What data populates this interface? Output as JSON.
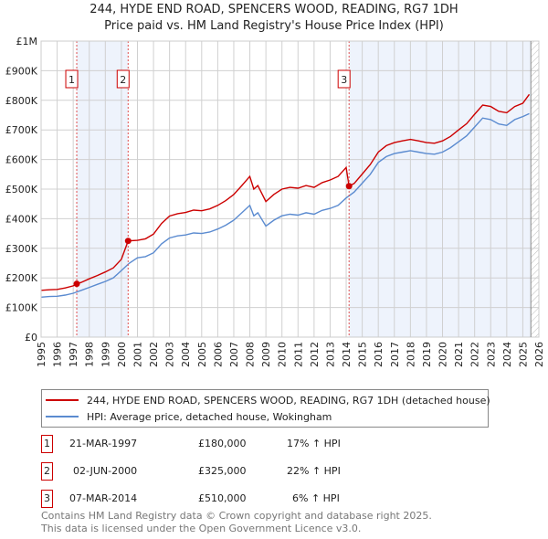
{
  "chart_data": {
    "type": "line",
    "title": "244, HYDE END ROAD, SPENCERS WOOD, READING, RG7 1DH",
    "subtitle": "Price paid vs. HM Land Registry's House Price Index (HPI)",
    "xlim": [
      1995,
      2026
    ],
    "ylim": [
      0,
      1000000
    ],
    "x_ticks": [
      "1995",
      "1996",
      "1997",
      "1998",
      "1999",
      "2000",
      "2001",
      "2002",
      "2003",
      "2004",
      "2005",
      "2006",
      "2007",
      "2008",
      "2009",
      "2010",
      "2011",
      "2012",
      "2013",
      "2014",
      "2015",
      "2016",
      "2017",
      "2018",
      "2019",
      "2020",
      "2021",
      "2022",
      "2023",
      "2024",
      "2025",
      "2026"
    ],
    "y_ticks": [
      {
        "v": 0,
        "label": "£0"
      },
      {
        "v": 100000,
        "label": "£100K"
      },
      {
        "v": 200000,
        "label": "£200K"
      },
      {
        "v": 300000,
        "label": "£300K"
      },
      {
        "v": 400000,
        "label": "£400K"
      },
      {
        "v": 500000,
        "label": "£500K"
      },
      {
        "v": 600000,
        "label": "£600K"
      },
      {
        "v": 700000,
        "label": "£700K"
      },
      {
        "v": 800000,
        "label": "£800K"
      },
      {
        "v": 900000,
        "label": "£900K"
      },
      {
        "v": 1000000,
        "label": "£1M"
      }
    ],
    "grid": true,
    "series": [
      {
        "name": "244, HYDE END ROAD, SPENCERS WOOD, READING, RG7 1DH (detached house)",
        "color": "#cc0000",
        "x": [
          1995,
          1995.5,
          1996,
          1996.5,
          1997,
          1997.22,
          1997.5,
          1998,
          1998.5,
          1999,
          1999.5,
          2000,
          2000.42,
          2001,
          2001.5,
          2002,
          2002.5,
          2003,
          2003.5,
          2004,
          2004.5,
          2005,
          2005.5,
          2006,
          2006.5,
          2007,
          2007.5,
          2008,
          2008.25,
          2008.5,
          2009,
          2009.5,
          2010,
          2010.5,
          2011,
          2011.5,
          2012,
          2012.5,
          2013,
          2013.5,
          2014,
          2014.18,
          2014.5,
          2015,
          2015.5,
          2016,
          2016.5,
          2017,
          2017.5,
          2018,
          2018.5,
          2019,
          2019.5,
          2020,
          2020.5,
          2021,
          2021.5,
          2022,
          2022.5,
          2023,
          2023.5,
          2024,
          2024.5,
          2025,
          2025.4
        ],
        "y": [
          158000,
          160000,
          161000,
          166000,
          173000,
          180000,
          185000,
          197000,
          208000,
          220000,
          234000,
          263000,
          325000,
          327000,
          332000,
          348000,
          384000,
          409000,
          417000,
          421000,
          429000,
          427000,
          433000,
          445000,
          461000,
          482000,
          512000,
          543000,
          500000,
          512000,
          458000,
          482000,
          500000,
          506000,
          503000,
          512000,
          506000,
          522000,
          531000,
          543000,
          573000,
          510000,
          519000,
          551000,
          583000,
          625000,
          647000,
          657000,
          663000,
          668000,
          663000,
          657000,
          655000,
          663000,
          678000,
          700000,
          721000,
          753000,
          784000,
          779000,
          763000,
          758000,
          779000,
          790000,
          820000
        ]
      },
      {
        "name": "HPI: Average price, detached house, Wokingham",
        "color": "#5b8bd0",
        "x": [
          1995,
          1995.5,
          1996,
          1996.5,
          1997,
          1997.5,
          1998,
          1998.5,
          1999,
          1999.5,
          2000,
          2000.5,
          2001,
          2001.5,
          2002,
          2002.5,
          2003,
          2003.5,
          2004,
          2004.5,
          2005,
          2005.5,
          2006,
          2006.5,
          2007,
          2007.5,
          2008,
          2008.25,
          2008.5,
          2009,
          2009.5,
          2010,
          2010.5,
          2011,
          2011.5,
          2012,
          2012.5,
          2013,
          2013.5,
          2014,
          2014.5,
          2015,
          2015.5,
          2016,
          2016.5,
          2017,
          2017.5,
          2018,
          2018.5,
          2019,
          2019.5,
          2020,
          2020.5,
          2021,
          2021.5,
          2022,
          2022.5,
          2023,
          2023.5,
          2024,
          2024.5,
          2025,
          2025.4
        ],
        "y": [
          135000,
          137000,
          138000,
          142000,
          148000,
          158000,
          168000,
          178000,
          188000,
          200000,
          225000,
          250000,
          268000,
          272000,
          285000,
          315000,
          335000,
          342000,
          345000,
          352000,
          350000,
          355000,
          365000,
          378000,
          395000,
          420000,
          445000,
          410000,
          420000,
          375000,
          395000,
          410000,
          415000,
          412000,
          420000,
          415000,
          428000,
          435000,
          445000,
          470000,
          490000,
          520000,
          550000,
          590000,
          610000,
          620000,
          625000,
          630000,
          625000,
          620000,
          618000,
          625000,
          640000,
          660000,
          680000,
          710000,
          740000,
          735000,
          720000,
          715000,
          735000,
          745000,
          755000
        ]
      }
    ],
    "sales": [
      {
        "label": "1",
        "x": 1997.22,
        "y": 180000,
        "date": "21-MAR-1997",
        "price": "£180,000",
        "hpi": "17% ↑ HPI"
      },
      {
        "label": "2",
        "x": 2000.42,
        "y": 325000,
        "date": "02-JUN-2000",
        "price": "£325,000",
        "hpi": "22% ↑ HPI"
      },
      {
        "label": "3",
        "x": 2014.18,
        "y": 510000,
        "date": "07-MAR-2014",
        "price": "£510,000",
        "hpi": "6% ↑ HPI"
      }
    ],
    "data_end": 2025.5,
    "legend": "bottom"
  },
  "footer": {
    "line1": "Contains HM Land Registry data © Crown copyright and database right 2025.",
    "line2": "This data is licensed under the Open Government Licence v3.0."
  }
}
